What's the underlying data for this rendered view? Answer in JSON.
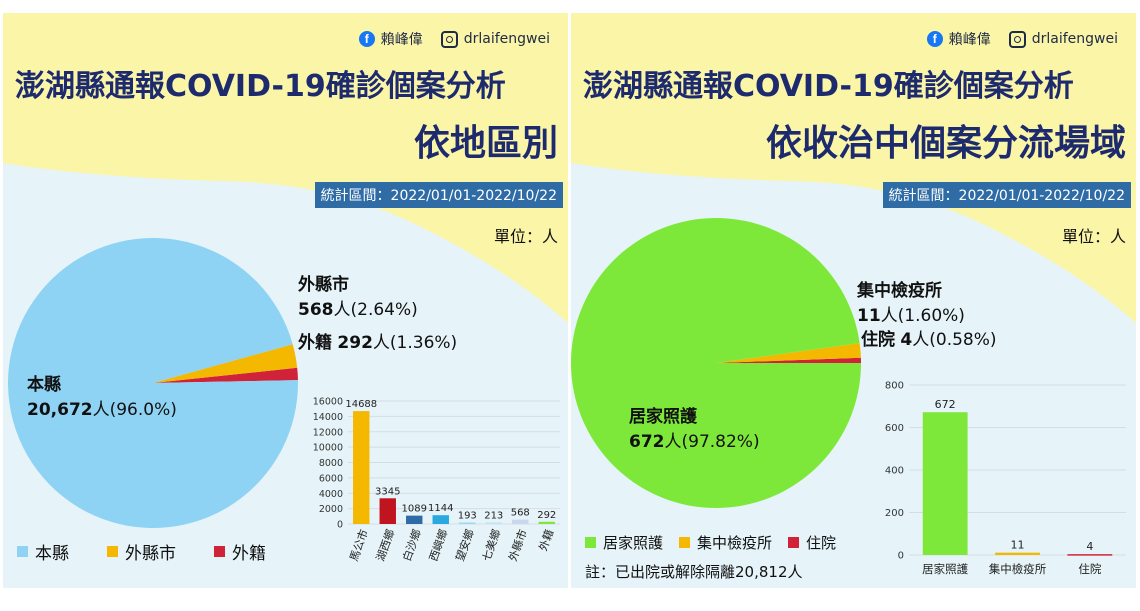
{
  "left": {
    "social": {
      "facebook": "賴峰偉",
      "instagram": "drlaifengwei"
    },
    "title": "澎湖縣通報COVID-19確診個案分析",
    "subtitle": "依地區別",
    "period": "統計區間：2022/01/01-2022/10/22",
    "unit": "單位：人",
    "pie_labels": {
      "main_name": "本縣",
      "main_value": "20,672",
      "main_rest": "人(96.0%)",
      "a_name": "外縣市",
      "a_value": "568",
      "a_rest": "人(2.64%)",
      "b_name": "外籍",
      "b_value": "292",
      "b_rest": "人(1.36%)"
    },
    "legend": [
      "本縣",
      "外縣市",
      "外籍"
    ]
  },
  "right": {
    "social": {
      "facebook": "賴峰偉",
      "instagram": "drlaifengwei"
    },
    "title": "澎湖縣通報COVID-19確診個案分析",
    "subtitle": "依收治中個案分流場域",
    "period": "統計區間：2022/01/01-2022/10/22",
    "unit": "單位：人",
    "pie_labels": {
      "main_name": "居家照護",
      "main_value": "672",
      "main_rest": "人(97.82%)",
      "a_name": "集中檢疫所",
      "a_value": "11",
      "a_rest": "人(1.60%)",
      "b_name": "住院",
      "b_value": "4",
      "b_rest": "人(0.58%)"
    },
    "legend": [
      "居家照護",
      "集中檢疫所",
      "住院"
    ],
    "note": "註：已出院或解除隔離20,812人"
  },
  "colors": {
    "sky": "#8fd3f4",
    "orange": "#f5b800",
    "red": "#d0233a",
    "green": "#7ee83a",
    "yellow_bg": "#fbf5a8",
    "navy": "#1d2b6e",
    "blue_bar": "#2f6ca6"
  },
  "chart_data": [
    {
      "type": "pie",
      "categories": [
        "本縣",
        "外縣市",
        "外籍"
      ],
      "values": [
        20672,
        568,
        292
      ],
      "percents": [
        96.0,
        2.64,
        1.36
      ],
      "colors": [
        "#8fd3f4",
        "#f5b800",
        "#d0233a"
      ],
      "legend": "bottom"
    },
    {
      "type": "bar",
      "categories": [
        "馬公市",
        "湖西鄉",
        "白沙鄉",
        "西嶼鄉",
        "望安鄉",
        "七美鄉",
        "外縣市",
        "外籍"
      ],
      "values": [
        14688,
        3345,
        1089,
        1144,
        193,
        213,
        568,
        292
      ],
      "colors": [
        "#f5b800",
        "#c0141f",
        "#2f6ca6",
        "#29a9e0",
        "#9ad9f2",
        "#bfe6f4",
        "#c9d6ee",
        "#7ee83a"
      ],
      "ylim": [
        0,
        16000
      ],
      "yticks": [
        0,
        2000,
        4000,
        6000,
        8000,
        10000,
        12000,
        14000,
        16000
      ],
      "grid": true
    },
    {
      "type": "pie",
      "categories": [
        "居家照護",
        "集中檢疫所",
        "住院"
      ],
      "values": [
        672,
        11,
        4
      ],
      "percents": [
        97.82,
        1.6,
        0.58
      ],
      "colors": [
        "#7ee83a",
        "#f5b800",
        "#d0233a"
      ],
      "legend": "bottom"
    },
    {
      "type": "bar",
      "categories": [
        "居家照護",
        "集中檢疫所",
        "住院"
      ],
      "values": [
        672,
        11,
        4
      ],
      "colors": [
        "#7ee83a",
        "#f5b800",
        "#d0233a"
      ],
      "ylim": [
        0,
        800
      ],
      "yticks": [
        0,
        200,
        400,
        600,
        800
      ],
      "grid": true
    }
  ]
}
